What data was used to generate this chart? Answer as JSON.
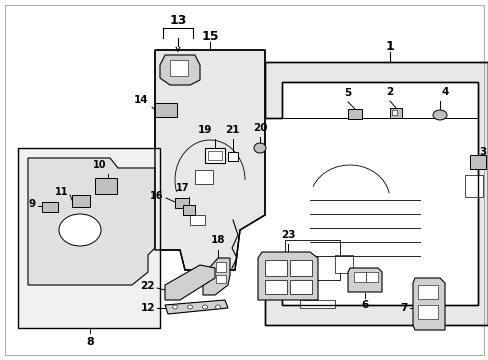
{
  "bg_color": "#ffffff",
  "panel_fill": "#e8e8e8",
  "part_fill": "#d8d8d8",
  "line_color": "#000000",
  "fig_width": 4.89,
  "fig_height": 3.6,
  "dpi": 100
}
